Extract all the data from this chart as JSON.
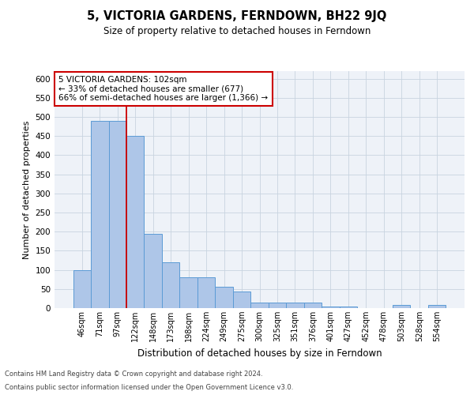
{
  "title": "5, VICTORIA GARDENS, FERNDOWN, BH22 9JQ",
  "subtitle": "Size of property relative to detached houses in Ferndown",
  "xlabel": "Distribution of detached houses by size in Ferndown",
  "ylabel": "Number of detached properties",
  "footer_line1": "Contains HM Land Registry data © Crown copyright and database right 2024.",
  "footer_line2": "Contains public sector information licensed under the Open Government Licence v3.0.",
  "categories": [
    "46sqm",
    "71sqm",
    "97sqm",
    "122sqm",
    "148sqm",
    "173sqm",
    "198sqm",
    "224sqm",
    "249sqm",
    "275sqm",
    "300sqm",
    "325sqm",
    "351sqm",
    "376sqm",
    "401sqm",
    "427sqm",
    "452sqm",
    "478sqm",
    "503sqm",
    "528sqm",
    "554sqm"
  ],
  "values": [
    100,
    490,
    490,
    450,
    195,
    120,
    80,
    80,
    55,
    43,
    15,
    15,
    15,
    15,
    5,
    5,
    0,
    0,
    8,
    0,
    8
  ],
  "bar_color": "#aec6e8",
  "bar_edge_color": "#5b9bd5",
  "grid_color": "#c8d4e0",
  "bg_color": "#eef2f8",
  "property_line_index": 2,
  "annotation_text_line1": "5 VICTORIA GARDENS: 102sqm",
  "annotation_text_line2": "← 33% of detached houses are smaller (677)",
  "annotation_text_line3": "66% of semi-detached houses are larger (1,366) →",
  "annotation_box_facecolor": "white",
  "annotation_box_edgecolor": "#cc0000",
  "ylim": [
    0,
    620
  ],
  "yticks": [
    0,
    50,
    100,
    150,
    200,
    250,
    300,
    350,
    400,
    450,
    500,
    550,
    600
  ]
}
